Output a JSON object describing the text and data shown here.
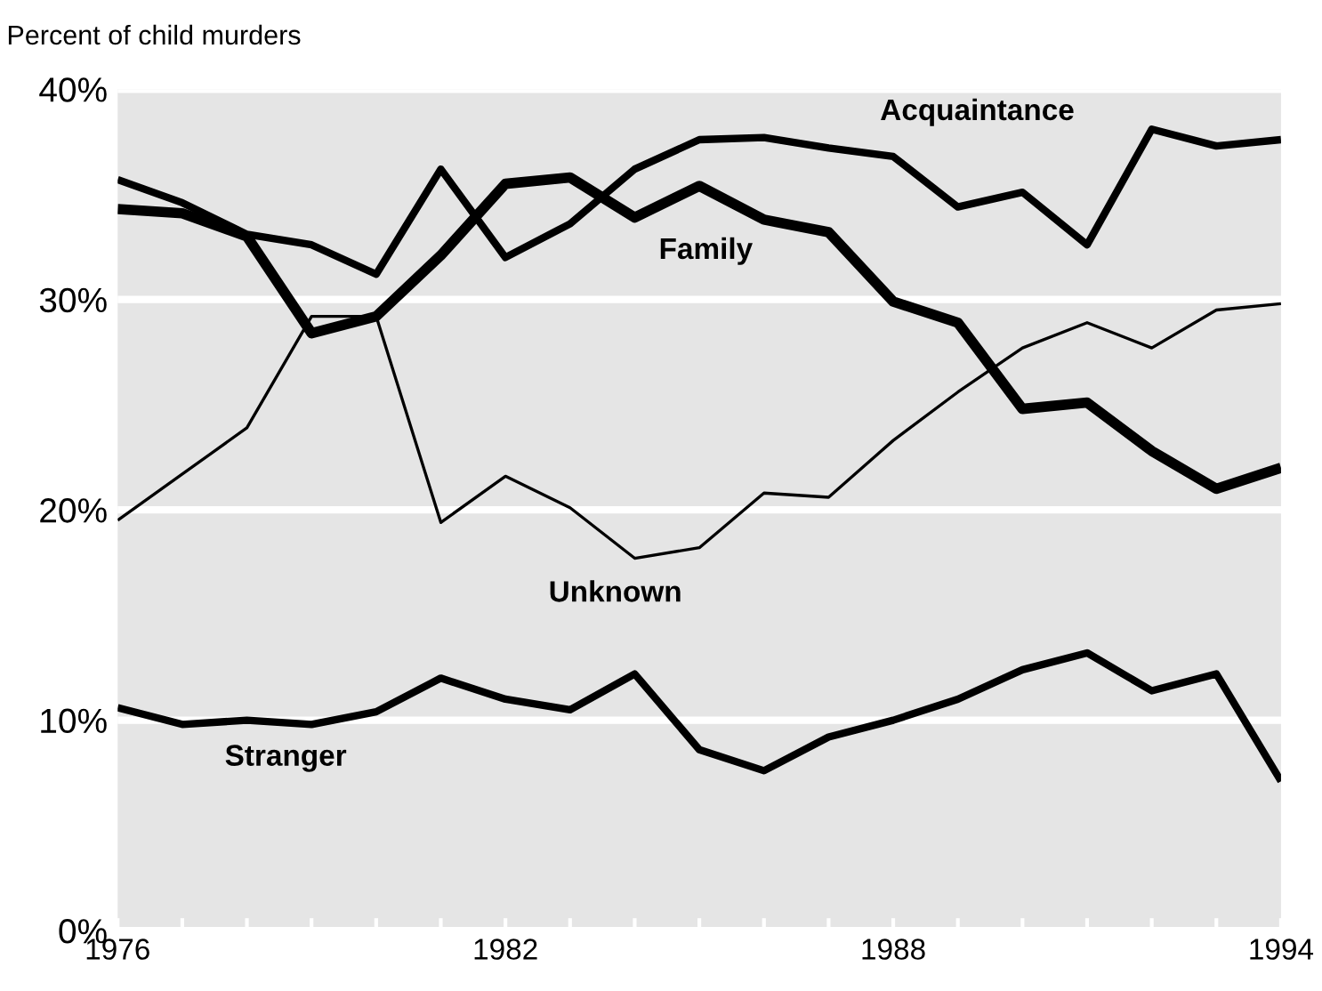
{
  "chart_data": {
    "type": "line",
    "ylabel": "Percent of child murders",
    "x": [
      1976,
      1977,
      1978,
      1979,
      1980,
      1981,
      1982,
      1983,
      1984,
      1985,
      1986,
      1987,
      1988,
      1989,
      1990,
      1991,
      1992,
      1993,
      1994
    ],
    "series": [
      {
        "name": "Acquaintance",
        "color": "#000000",
        "values": [
          35.7,
          34.6,
          33.1,
          32.6,
          31.2,
          36.2,
          32.0,
          33.6,
          36.2,
          37.6,
          37.7,
          37.2,
          36.8,
          34.4,
          35.1,
          32.6,
          38.1,
          37.3,
          37.6
        ]
      },
      {
        "name": "Family",
        "color": "#000000",
        "values": [
          34.3,
          34.1,
          33.0,
          28.4,
          29.2,
          32.1,
          35.5,
          35.8,
          33.9,
          35.4,
          33.8,
          33.2,
          29.9,
          28.9,
          24.8,
          25.1,
          22.8,
          21.0,
          22.0
        ]
      },
      {
        "name": "Unknown",
        "color": "#000000",
        "values": [
          19.5,
          21.7,
          23.9,
          29.2,
          29.2,
          19.4,
          21.6,
          20.1,
          17.7,
          18.2,
          20.8,
          20.6,
          23.3,
          25.6,
          27.7,
          28.9,
          27.7,
          29.5,
          29.8
        ]
      },
      {
        "name": "Stranger",
        "color": "#000000",
        "values": [
          10.6,
          9.8,
          10.0,
          9.8,
          10.4,
          12.0,
          11.0,
          10.5,
          12.2,
          8.6,
          7.6,
          9.2,
          10.0,
          11.0,
          12.4,
          13.2,
          11.4,
          12.2,
          7.1
        ]
      }
    ],
    "xlim": [
      1976,
      1994
    ],
    "ylim": [
      0,
      40
    ],
    "xticks": [
      1976,
      {
        "value": 1977,
        "label": null
      },
      {
        "value": 1978,
        "label": null
      },
      {
        "value": 1979,
        "label": null
      },
      {
        "value": 1980,
        "label": null
      },
      {
        "value": 1981,
        "label": null
      },
      1982,
      {
        "value": 1983,
        "label": null
      },
      {
        "value": 1984,
        "label": null
      },
      {
        "value": 1985,
        "label": null
      },
      {
        "value": 1986,
        "label": null
      },
      {
        "value": 1987,
        "label": null
      },
      1988,
      {
        "value": 1989,
        "label": null
      },
      {
        "value": 1990,
        "label": null
      },
      {
        "value": 1991,
        "label": null
      },
      {
        "value": 1992,
        "label": null
      },
      {
        "value": 1993,
        "label": null
      },
      1994
    ],
    "yticks": [
      {
        "value": 0,
        "label": "0%"
      },
      {
        "value": 10,
        "label": "10%"
      },
      {
        "value": 20,
        "label": "20%"
      },
      {
        "value": 30,
        "label": "30%"
      },
      {
        "value": 40,
        "label": "40%"
      }
    ],
    "grid": "y",
    "legend": false,
    "marker": "none",
    "line_style": "solid"
  }
}
